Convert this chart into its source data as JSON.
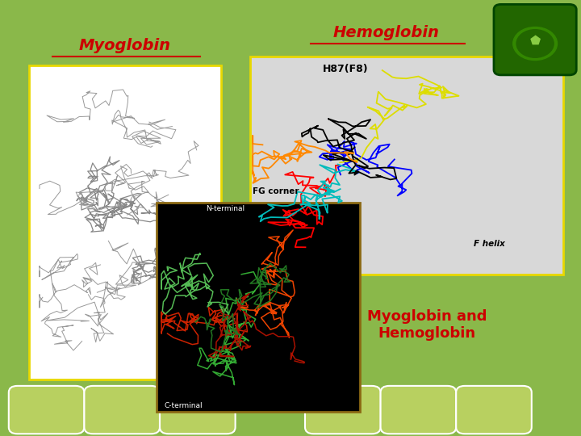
{
  "background_color": "#8ab84a",
  "title_myoglobin": "Myoglobin",
  "title_hemoglobin": "Hemoglobin",
  "title_combined": "Myoglobin and\nHemoglobin",
  "title_color": "#cc0000",
  "title_fontsize": 14,
  "combined_title_fontsize": 13,
  "combined_title_color": "#cc0000",
  "border_color_yellow": "#e8d800",
  "border_color_dark": "#8b6914",
  "arch_border": "#ffffff",
  "arch_fill": "#b8d060"
}
